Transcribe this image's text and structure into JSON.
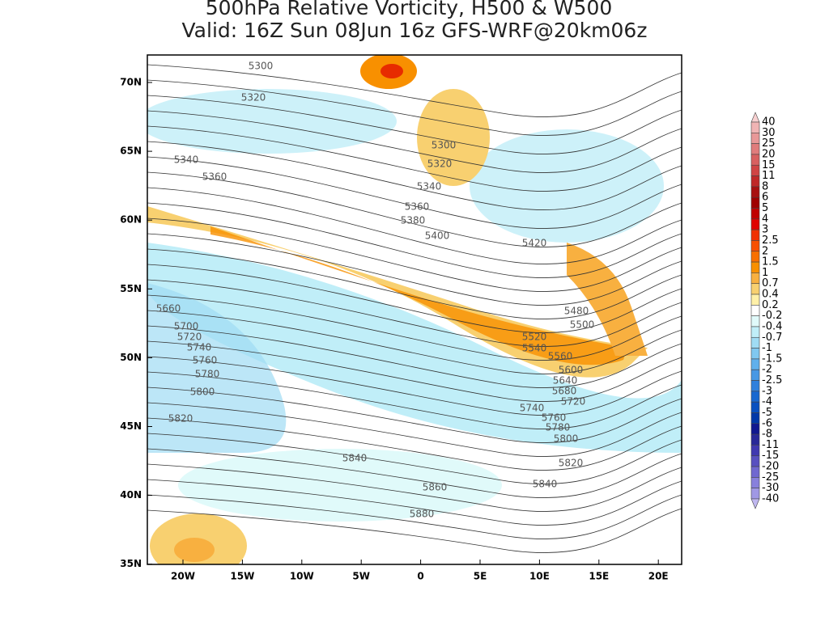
{
  "title_line_1": "500hPa Relative Vorticity, H500 & W500",
  "title_line_2": "Valid: 16Z Sun 08Jun 16z GFS-WRF@20km06z",
  "lat_labels": [
    "70N",
    "65N",
    "60N",
    "55N",
    "50N",
    "45N",
    "40N",
    "35N"
  ],
  "lon_labels": [
    "20W",
    "15W",
    "10W",
    "5W",
    "0",
    "5E",
    "10E",
    "15E",
    "20E"
  ],
  "colorbar": {
    "labels": [
      "40",
      "30",
      "25",
      "20",
      "15",
      "11",
      "8",
      "6",
      "5",
      "4",
      "3",
      "2.5",
      "2",
      "1.5",
      "1",
      "0.7",
      "0.4",
      "0.2",
      "-0.2",
      "-0.4",
      "-0.7",
      "-1",
      "-1.5",
      "-2",
      "-2.5",
      "-3",
      "-4",
      "-5",
      "-6",
      "-8",
      "-11",
      "-15",
      "-20",
      "-25",
      "-30",
      "-40"
    ],
    "colors": [
      "#f8d0d0",
      "#f0b4b4",
      "#e89898",
      "#e07c7c",
      "#d86060",
      "#d04444",
      "#c02828",
      "#a81010",
      "#a00000",
      "#c00000",
      "#e00000",
      "#f03000",
      "#f85000",
      "#f87000",
      "#f89000",
      "#f8b040",
      "#f8d070",
      "#fff0a8",
      "#ffffff",
      "#e0fafa",
      "#c0eef8",
      "#a0dcf4",
      "#80c8f0",
      "#60b0ec",
      "#4898e4",
      "#3080dc",
      "#1868d0",
      "#0850c0",
      "#0038a8",
      "#101890",
      "#282898",
      "#4038b0",
      "#5850c0",
      "#7068d0",
      "#8880dc",
      "#a098e4",
      "#c0b8f0"
    ]
  },
  "contour_labels": [
    "5300",
    "5320",
    "5340",
    "5360",
    "5300",
    "5320",
    "5340",
    "5360",
    "5380",
    "5400",
    "5420",
    "5660",
    "5700",
    "5720",
    "5740",
    "5760",
    "5780",
    "5800",
    "5820",
    "5480",
    "5500",
    "5520",
    "5540",
    "5560",
    "5600",
    "5640",
    "5680",
    "5720",
    "5740",
    "5760",
    "5780",
    "5800",
    "5820",
    "5840",
    "5840",
    "5860",
    "5880"
  ]
}
